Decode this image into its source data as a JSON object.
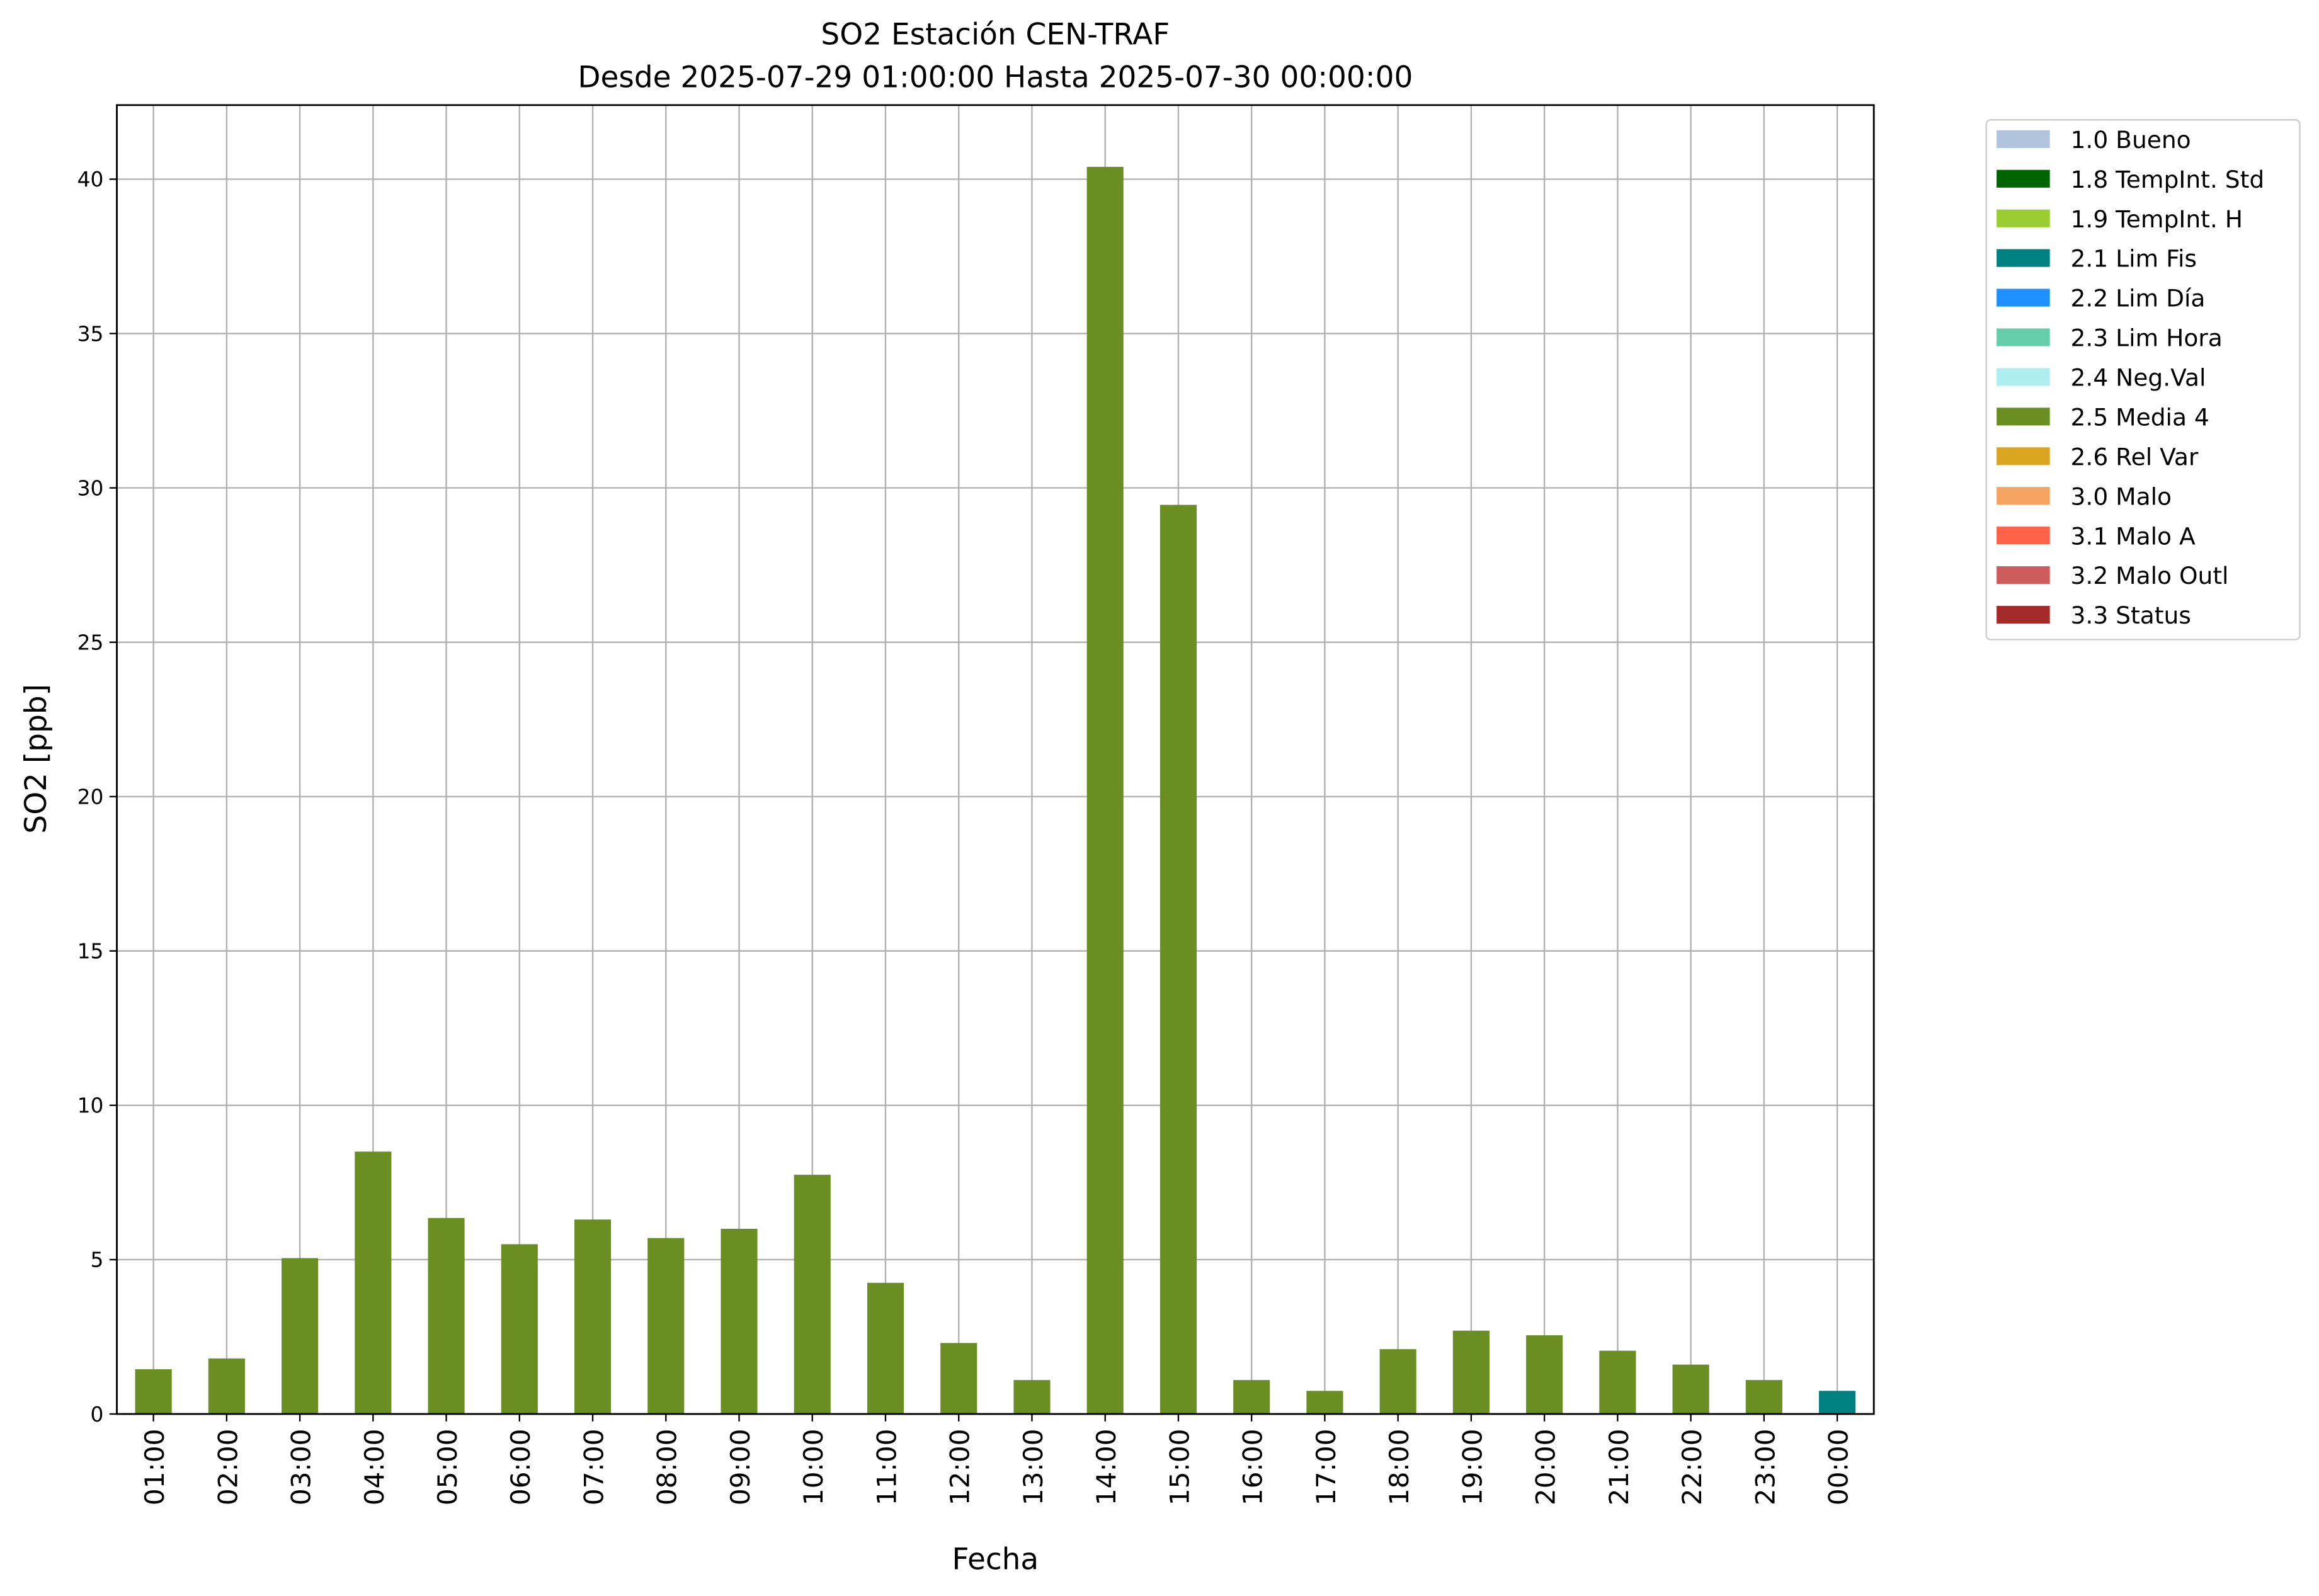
{
  "chart_data": {
    "type": "stacked_bar",
    "title": "SO2 Estación CEN-TRAF",
    "subtitle": "Desde 2025-07-29 01:00:00 Hasta 2025-07-30 00:00:00",
    "x_label": "Fecha",
    "y_label": "SO2 [ppb]",
    "categories": [
      "01:00",
      "02:00",
      "03:00",
      "04:00",
      "05:00",
      "06:00",
      "07:00",
      "08:00",
      "09:00",
      "10:00",
      "11:00",
      "12:00",
      "13:00",
      "14:00",
      "15:00",
      "16:00",
      "17:00",
      "18:00",
      "19:00",
      "20:00",
      "21:00",
      "22:00",
      "23:00",
      "00:00"
    ],
    "series": [
      {
        "name": "1.0 Bueno",
        "color": "#b0c4de",
        "values": [
          null,
          null,
          null,
          null,
          null,
          null,
          null,
          null,
          null,
          null,
          null,
          null,
          null,
          null,
          null,
          null,
          null,
          null,
          null,
          null,
          null,
          null,
          null,
          null
        ]
      },
      {
        "name": "1.8 TempInt. Std",
        "color": "#006400",
        "values": [
          null,
          null,
          null,
          null,
          null,
          null,
          null,
          null,
          null,
          null,
          null,
          null,
          null,
          null,
          null,
          null,
          null,
          null,
          null,
          null,
          null,
          null,
          null,
          null
        ]
      },
      {
        "name": "1.9 TempInt. H",
        "color": "#9acd32",
        "values": [
          null,
          null,
          null,
          null,
          null,
          null,
          null,
          null,
          null,
          null,
          null,
          null,
          null,
          null,
          null,
          null,
          null,
          null,
          null,
          null,
          null,
          null,
          null,
          null
        ]
      },
      {
        "name": "2.1 Lim Fis",
        "color": "#008080",
        "values": [
          null,
          null,
          null,
          null,
          null,
          null,
          null,
          null,
          null,
          null,
          null,
          null,
          null,
          null,
          null,
          null,
          null,
          null,
          null,
          null,
          null,
          null,
          null,
          0.75
        ]
      },
      {
        "name": "2.2 Lim Día",
        "color": "#1e90ff",
        "values": [
          null,
          null,
          null,
          null,
          null,
          null,
          null,
          null,
          null,
          null,
          null,
          null,
          null,
          null,
          null,
          null,
          null,
          null,
          null,
          null,
          null,
          null,
          null,
          null
        ]
      },
      {
        "name": "2.3 Lim Hora",
        "color": "#66cdaa",
        "values": [
          null,
          null,
          null,
          null,
          null,
          null,
          null,
          null,
          null,
          null,
          null,
          null,
          null,
          null,
          null,
          null,
          null,
          null,
          null,
          null,
          null,
          null,
          null,
          null
        ]
      },
      {
        "name": "2.4 Neg.Val",
        "color": "#afeeee",
        "values": [
          null,
          null,
          null,
          null,
          null,
          null,
          null,
          null,
          null,
          null,
          null,
          null,
          null,
          null,
          null,
          null,
          null,
          null,
          null,
          null,
          null,
          null,
          null,
          null
        ]
      },
      {
        "name": "2.5 Media 4",
        "color": "#6b8e23",
        "values": [
          1.45,
          1.8,
          5.05,
          8.5,
          6.35,
          5.5,
          6.3,
          5.7,
          6.0,
          7.75,
          4.25,
          2.3,
          1.1,
          40.4,
          29.45,
          1.1,
          0.75,
          2.1,
          2.7,
          2.55,
          2.05,
          1.6,
          1.1,
          null
        ]
      },
      {
        "name": "2.6 Rel Var",
        "color": "#daa520",
        "values": [
          null,
          null,
          null,
          null,
          null,
          null,
          null,
          null,
          null,
          null,
          null,
          null,
          null,
          null,
          null,
          null,
          null,
          null,
          null,
          null,
          null,
          null,
          null,
          null
        ]
      },
      {
        "name": "3.0 Malo",
        "color": "#f4a460",
        "values": [
          null,
          null,
          null,
          null,
          null,
          null,
          null,
          null,
          null,
          null,
          null,
          null,
          null,
          null,
          null,
          null,
          null,
          null,
          null,
          null,
          null,
          null,
          null,
          null
        ]
      },
      {
        "name": "3.1 Malo A",
        "color": "#ff6347",
        "values": [
          null,
          null,
          null,
          null,
          null,
          null,
          null,
          null,
          null,
          null,
          null,
          null,
          null,
          null,
          null,
          null,
          null,
          null,
          null,
          null,
          null,
          null,
          null,
          null
        ]
      },
      {
        "name": "3.2 Malo Outl",
        "color": "#cd5c5c",
        "values": [
          null,
          null,
          null,
          null,
          null,
          null,
          null,
          null,
          null,
          null,
          null,
          null,
          null,
          null,
          null,
          null,
          null,
          null,
          null,
          null,
          null,
          null,
          null,
          null
        ]
      },
      {
        "name": "3.3 Status",
        "color": "#a52a2a",
        "values": [
          null,
          null,
          null,
          null,
          null,
          null,
          null,
          null,
          null,
          null,
          null,
          null,
          null,
          null,
          null,
          null,
          null,
          null,
          null,
          null,
          null,
          null,
          null,
          null
        ]
      }
    ],
    "ylim": [
      0,
      42.4
    ],
    "yticks": [
      0,
      5,
      10,
      15,
      20,
      25,
      30,
      35,
      40
    ],
    "grid": true,
    "legend": "outside-upper-right"
  }
}
